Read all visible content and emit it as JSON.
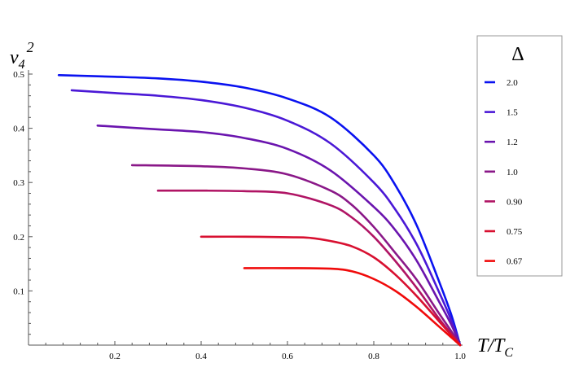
{
  "chart_data": {
    "type": "line",
    "xlabel_main": "T/T",
    "xlabel_sub": "C",
    "ylabel_main": "v",
    "ylabel_sub": "4",
    "ylabel_sup": "2",
    "legend_title": "Δ",
    "xlim": [
      0,
      1.0
    ],
    "ylim": [
      0,
      0.5
    ],
    "xticks": [
      0.2,
      0.4,
      0.6,
      0.8,
      1.0
    ],
    "xtick_labels": [
      "0.2",
      "0.4",
      "0.6",
      "0.8",
      "1.0"
    ],
    "yticks": [
      0.1,
      0.2,
      0.3,
      0.4,
      0.5
    ],
    "ytick_labels": [
      "0.1",
      "0.2",
      "0.3",
      "0.4",
      "0.5"
    ],
    "grid": false,
    "legend_position": "top-right",
    "series": [
      {
        "name": "2.0",
        "color": "#0a12f0",
        "x": [
          0.07,
          0.2,
          0.3,
          0.4,
          0.5,
          0.6,
          0.7,
          0.8,
          0.85,
          0.9,
          0.95,
          0.98,
          1.0
        ],
        "y": [
          0.498,
          0.495,
          0.492,
          0.486,
          0.475,
          0.455,
          0.42,
          0.35,
          0.295,
          0.22,
          0.12,
          0.055,
          0.0
        ]
      },
      {
        "name": "1.5",
        "color": "#4a18d6",
        "x": [
          0.1,
          0.2,
          0.3,
          0.4,
          0.5,
          0.6,
          0.7,
          0.8,
          0.85,
          0.9,
          0.95,
          0.98,
          1.0
        ],
        "y": [
          0.47,
          0.465,
          0.46,
          0.452,
          0.438,
          0.414,
          0.372,
          0.3,
          0.25,
          0.185,
          0.1,
          0.045,
          0.0
        ]
      },
      {
        "name": "1.2",
        "color": "#6a14ae",
        "x": [
          0.16,
          0.3,
          0.4,
          0.5,
          0.6,
          0.7,
          0.8,
          0.85,
          0.9,
          0.95,
          0.98,
          1.0
        ],
        "y": [
          0.405,
          0.398,
          0.393,
          0.382,
          0.362,
          0.322,
          0.255,
          0.212,
          0.155,
          0.082,
          0.037,
          0.0
        ]
      },
      {
        "name": "1.0",
        "color": "#8a1888",
        "x": [
          0.24,
          0.4,
          0.5,
          0.6,
          0.7,
          0.75,
          0.8,
          0.85,
          0.9,
          0.95,
          0.98,
          1.0
        ],
        "y": [
          0.332,
          0.33,
          0.326,
          0.315,
          0.285,
          0.258,
          0.218,
          0.17,
          0.12,
          0.06,
          0.025,
          0.0
        ]
      },
      {
        "name": "0.90",
        "color": "#b01464",
        "x": [
          0.3,
          0.4,
          0.5,
          0.6,
          0.7,
          0.75,
          0.8,
          0.85,
          0.9,
          0.95,
          0.98,
          1.0
        ],
        "y": [
          0.285,
          0.285,
          0.284,
          0.28,
          0.258,
          0.235,
          0.2,
          0.155,
          0.105,
          0.05,
          0.02,
          0.0
        ]
      },
      {
        "name": "0.75",
        "color": "#d81030",
        "x": [
          0.4,
          0.5,
          0.6,
          0.65,
          0.7,
          0.75,
          0.8,
          0.85,
          0.9,
          0.95,
          0.98,
          1.0
        ],
        "y": [
          0.2,
          0.2,
          0.199,
          0.198,
          0.192,
          0.182,
          0.162,
          0.13,
          0.09,
          0.045,
          0.018,
          0.0
        ]
      },
      {
        "name": "0.67",
        "color": "#f00a0a",
        "x": [
          0.5,
          0.6,
          0.7,
          0.75,
          0.8,
          0.85,
          0.9,
          0.95,
          0.98,
          1.0
        ],
        "y": [
          0.142,
          0.142,
          0.141,
          0.136,
          0.122,
          0.1,
          0.07,
          0.035,
          0.014,
          0.0
        ]
      }
    ]
  }
}
